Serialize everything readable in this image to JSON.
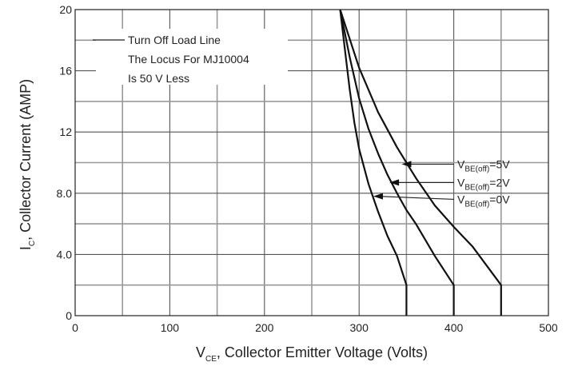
{
  "chart_data": {
    "type": "line",
    "title": "",
    "xlabel": {
      "main": "V",
      "sub": "CE",
      "rest": ", Collector Emitter Voltage (Volts)"
    },
    "ylabel": {
      "main": "I",
      "sub": "C",
      "rest": ", Collector Current (AMP)"
    },
    "xlim": [
      0,
      500
    ],
    "ylim": [
      0,
      20
    ],
    "x_ticks": [
      0,
      100,
      200,
      300,
      400,
      500
    ],
    "y_ticks": [
      0,
      4,
      8,
      12,
      16,
      20
    ],
    "x_tick_labels": [
      "0",
      "100",
      "200",
      "300",
      "400",
      "500"
    ],
    "y_tick_labels": [
      "0",
      "4.0",
      "8.0",
      "12",
      "16",
      "20"
    ],
    "grid": true,
    "annotation_lines": [
      "Turn Off Load Line",
      "The Locus For MJ10004",
      "Is 50 V Less"
    ],
    "series": [
      {
        "name": {
          "main": "V",
          "sub": "BE(off)",
          "rest": "=5V"
        },
        "x": [
          280,
          300,
          320,
          340,
          360,
          380,
          400,
          420,
          450,
          450
        ],
        "y": [
          20,
          16.2,
          13.3,
          11,
          9,
          7.2,
          5.8,
          4.5,
          2,
          0
        ]
      },
      {
        "name": {
          "main": "V",
          "sub": "BE(off)",
          "rest": "=2V"
        },
        "x": [
          280,
          290,
          300,
          310,
          320,
          330,
          340,
          350,
          360,
          380,
          400,
          400
        ],
        "y": [
          20,
          16.9,
          14.2,
          12.2,
          10.6,
          9.2,
          8,
          6.9,
          6,
          3.9,
          2,
          0
        ]
      },
      {
        "name": {
          "main": "V",
          "sub": "BE(off)",
          "rest": "=0V"
        },
        "x": [
          280,
          285,
          290,
          295,
          300,
          310,
          320,
          330,
          340,
          350,
          350
        ],
        "y": [
          20,
          17.4,
          14.8,
          12.6,
          10.9,
          8.6,
          6.8,
          5.2,
          3.9,
          2,
          0
        ]
      }
    ]
  }
}
